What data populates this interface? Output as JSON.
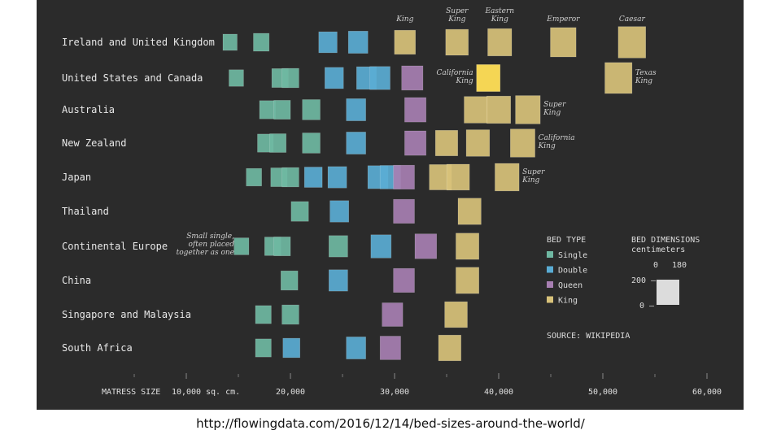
{
  "chart_data": {
    "type": "scatter",
    "title": "",
    "xlabel": "MATRESS SIZE",
    "x_unit": "sq. cm.",
    "xlim": [
      5000,
      60000
    ],
    "x_ticks": [
      10000,
      20000,
      30000,
      40000,
      50000,
      60000
    ],
    "x_tick_labels": [
      "10,000",
      "20,000",
      "30,000",
      "40,000",
      "50,000",
      "60,000"
    ],
    "colors": {
      "Single": "#6fb8a2",
      "Double": "#5aacd4",
      "Queen": "#a77fb2",
      "King": "#d8c27a",
      "Highlight": "#f5d654",
      "Background": "#2b2b2b"
    },
    "rows": [
      {
        "region": "Ireland and United Kingdom",
        "beds": [
          {
            "type": "Single",
            "area": 14200
          },
          {
            "type": "Single",
            "area": 17200
          },
          {
            "type": "Double",
            "area": 23600
          },
          {
            "type": "Double",
            "area": 26500
          },
          {
            "type": "King",
            "area": 31000,
            "label": "King"
          },
          {
            "type": "King",
            "area": 36000,
            "label": "Super King"
          },
          {
            "type": "King",
            "area": 40100,
            "label": "Eastern King"
          },
          {
            "type": "King",
            "area": 46200,
            "label": "Emperor"
          },
          {
            "type": "King",
            "area": 52800,
            "label": "Caesar"
          }
        ]
      },
      {
        "region": "United States and Canada",
        "beds": [
          {
            "type": "Single",
            "area": 14800
          },
          {
            "type": "Single",
            "area": 19000
          },
          {
            "type": "Single",
            "area": 20000
          },
          {
            "type": "Double",
            "area": 24200
          },
          {
            "type": "Double",
            "area": 27300
          },
          {
            "type": "Double",
            "area": 28600
          },
          {
            "type": "Queen",
            "area": 31700
          },
          {
            "type": "King",
            "area": 39000,
            "label": "California King"
          },
          {
            "type": "King",
            "area": 51500,
            "label": "Texas King"
          }
        ]
      },
      {
        "region": "Australia",
        "beds": [
          {
            "type": "Single",
            "area": 17800
          },
          {
            "type": "Single",
            "area": 19200
          },
          {
            "type": "Single",
            "area": 22000
          },
          {
            "type": "Double",
            "area": 26300
          },
          {
            "type": "Queen",
            "area": 32000
          },
          {
            "type": "King",
            "area": 37800
          },
          {
            "type": "King",
            "area": 40000
          },
          {
            "type": "King",
            "area": 42800,
            "label": "Super King"
          }
        ]
      },
      {
        "region": "New Zealand",
        "beds": [
          {
            "type": "Single",
            "area": 17600
          },
          {
            "type": "Single",
            "area": 18800
          },
          {
            "type": "Single",
            "area": 22000
          },
          {
            "type": "Double",
            "area": 26300
          },
          {
            "type": "Queen",
            "area": 32000
          },
          {
            "type": "King",
            "area": 35000
          },
          {
            "type": "King",
            "area": 38000
          },
          {
            "type": "King",
            "area": 42300,
            "label": "California King"
          }
        ]
      },
      {
        "region": "Japan",
        "beds": [
          {
            "type": "Single",
            "area": 16500
          },
          {
            "type": "Single",
            "area": 18900
          },
          {
            "type": "Single",
            "area": 20000
          },
          {
            "type": "Double",
            "area": 22200
          },
          {
            "type": "Double",
            "area": 24500
          },
          {
            "type": "Double",
            "area": 28400
          },
          {
            "type": "Double",
            "area": 29600
          },
          {
            "type": "Queen",
            "area": 30900
          },
          {
            "type": "King",
            "area": 34400
          },
          {
            "type": "King",
            "area": 36100
          },
          {
            "type": "King",
            "area": 40800,
            "label": "Super King"
          }
        ]
      },
      {
        "region": "Thailand",
        "beds": [
          {
            "type": "Single",
            "area": 20900
          },
          {
            "type": "Double",
            "area": 24700
          },
          {
            "type": "Queen",
            "area": 30900
          },
          {
            "type": "King",
            "area": 37200
          }
        ]
      },
      {
        "region": "Continental Europe",
        "beds": [
          {
            "type": "Single",
            "area": 15300,
            "label": "Small single, often placed together as one"
          },
          {
            "type": "Single",
            "area": 18300
          },
          {
            "type": "Single",
            "area": 19200
          },
          {
            "type": "Single",
            "area": 24600
          },
          {
            "type": "Double",
            "area": 28700
          },
          {
            "type": "Queen",
            "area": 33000
          },
          {
            "type": "King",
            "area": 37000
          }
        ]
      },
      {
        "region": "China",
        "beds": [
          {
            "type": "Single",
            "area": 19900
          },
          {
            "type": "Double",
            "area": 24600
          },
          {
            "type": "Queen",
            "area": 30900
          },
          {
            "type": "King",
            "area": 37000
          }
        ]
      },
      {
        "region": "Singapore and Malaysia",
        "beds": [
          {
            "type": "Single",
            "area": 17400
          },
          {
            "type": "Single",
            "area": 20000
          },
          {
            "type": "Queen",
            "area": 29800
          },
          {
            "type": "King",
            "area": 35900
          }
        ]
      },
      {
        "region": "South Africa",
        "beds": [
          {
            "type": "Single",
            "area": 17400
          },
          {
            "type": "Double",
            "area": 20100
          },
          {
            "type": "Double",
            "area": 26300
          },
          {
            "type": "Queen",
            "area": 29600
          },
          {
            "type": "King",
            "area": 35300
          }
        ]
      }
    ],
    "legend": {
      "bed_type_title": "BED TYPE",
      "items": [
        "Single",
        "Double",
        "Queen",
        "King"
      ],
      "dimensions_title": "BED DIMENSIONS",
      "dimensions_unit": "centimeters",
      "dim_x_labels": [
        "0",
        "180"
      ],
      "dim_y_labels": [
        "200 –",
        "0 –"
      ],
      "source": "SOURCE: WIKIPEDIA"
    }
  },
  "footer": {
    "credit": "http://flowingdata.com/2016/12/14/bed-sizes-around-the-world/"
  }
}
